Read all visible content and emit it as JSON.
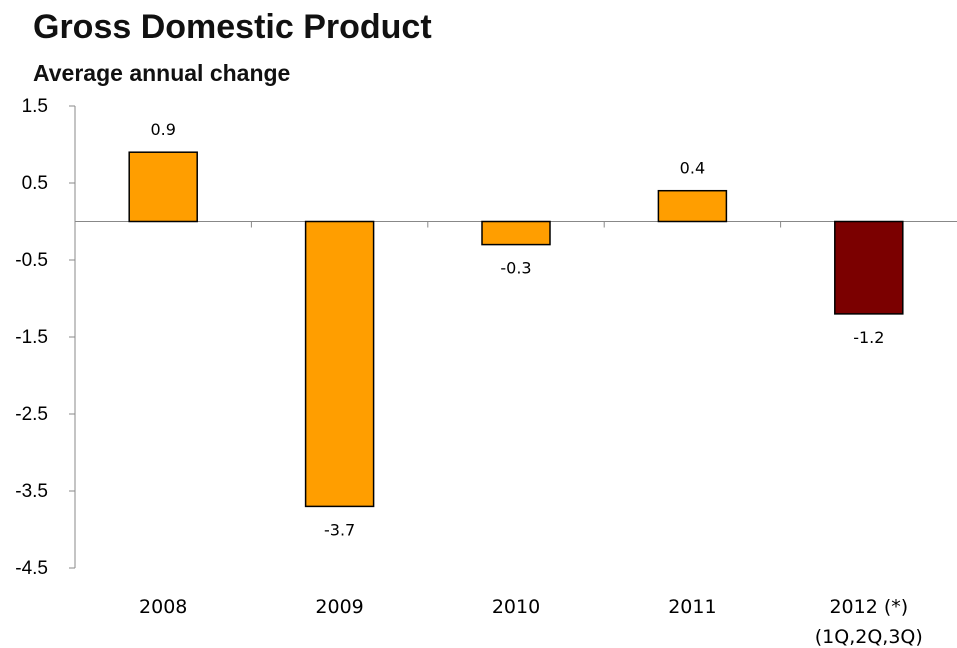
{
  "chart_data": {
    "type": "bar",
    "title": "Gross Domestic Product",
    "subtitle": "Average annual change",
    "categories": [
      [
        "2008"
      ],
      [
        "2009"
      ],
      [
        "2010"
      ],
      [
        "2011"
      ],
      [
        "2012 (*)",
        "(1Q,2Q,3Q)"
      ]
    ],
    "values": [
      0.9,
      -3.7,
      -0.3,
      0.4,
      -1.2
    ],
    "data_labels": [
      "0.9",
      "-3.7",
      "-0.3",
      "0.4",
      "-1.2"
    ],
    "bar_colors": [
      "#FF9E00",
      "#FF9E00",
      "#FF9E00",
      "#FF9E00",
      "#7B0000"
    ],
    "y_ticks": [
      1.5,
      0.5,
      -0.5,
      -1.5,
      -2.5,
      -3.5,
      -4.5
    ],
    "y_tick_labels": [
      "1.5",
      "0.5",
      "-0.5",
      "-1.5",
      "-2.5",
      "-3.5",
      "-4.5"
    ],
    "ylim": [
      -4.5,
      1.5
    ],
    "grid": false,
    "legend": "none"
  }
}
